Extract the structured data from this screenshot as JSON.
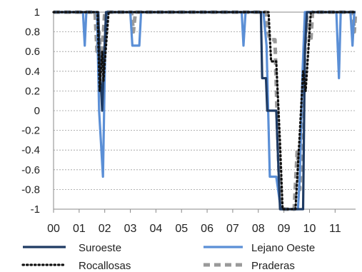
{
  "chart_data": {
    "type": "line",
    "title": "",
    "xlabel": "",
    "ylabel": "",
    "x_tick_labels": [
      "00",
      "01",
      "02",
      "03",
      "04",
      "05",
      "06",
      "07",
      "08",
      "09",
      "10",
      "11"
    ],
    "xlim": [
      0,
      11.8
    ],
    "ylim": [
      -1,
      1
    ],
    "y_ticks": [
      1,
      0.8,
      0.6,
      0.4,
      0.2,
      0,
      -0.2,
      -0.4,
      -0.6,
      -0.8,
      -1
    ],
    "grid": "horizontal-dashed",
    "legend_position": "bottom",
    "series": [
      {
        "name": "Suroeste",
        "color": "#1f3b63",
        "style": "solid",
        "points": [
          [
            0,
            1
          ],
          [
            1.75,
            1
          ],
          [
            1.8,
            0.5
          ],
          [
            1.9,
            0
          ],
          [
            1.97,
            0.5
          ],
          [
            2.05,
            1
          ],
          [
            2.2,
            1
          ],
          [
            8.1,
            1
          ],
          [
            8.15,
            0.33
          ],
          [
            8.3,
            0.33
          ],
          [
            8.35,
            0
          ],
          [
            8.7,
            0
          ],
          [
            8.85,
            -1
          ],
          [
            9.75,
            -1
          ],
          [
            9.82,
            0.6
          ],
          [
            9.9,
            1
          ],
          [
            11.8,
            1
          ]
        ]
      },
      {
        "name": "Lejano Oeste",
        "color": "#5b8fd6",
        "style": "solid",
        "points": [
          [
            0,
            1
          ],
          [
            1.15,
            1
          ],
          [
            1.22,
            0.66
          ],
          [
            1.28,
            1
          ],
          [
            1.7,
            1
          ],
          [
            1.78,
            0
          ],
          [
            1.93,
            -0.67
          ],
          [
            2.02,
            0.66
          ],
          [
            2.08,
            1
          ],
          [
            3.0,
            1
          ],
          [
            3.08,
            0.66
          ],
          [
            3.35,
            0.66
          ],
          [
            3.42,
            1
          ],
          [
            7.35,
            1
          ],
          [
            7.42,
            0.66
          ],
          [
            7.5,
            1
          ],
          [
            8.2,
            1
          ],
          [
            8.32,
            0.66
          ],
          [
            8.45,
            -0.67
          ],
          [
            8.7,
            -0.67
          ],
          [
            8.88,
            -1
          ],
          [
            9.55,
            -1
          ],
          [
            9.62,
            -0.67
          ],
          [
            9.72,
            0.33
          ],
          [
            9.82,
            1
          ],
          [
            11.05,
            1
          ],
          [
            11.15,
            0.33
          ],
          [
            11.22,
            1
          ],
          [
            11.6,
            1
          ],
          [
            11.68,
            0.66
          ],
          [
            11.75,
            1
          ],
          [
            11.8,
            1
          ]
        ]
      },
      {
        "name": "Rocallosas",
        "color": "#111111",
        "style": "dotted",
        "points": [
          [
            0,
            1
          ],
          [
            1.72,
            1
          ],
          [
            1.8,
            0.2
          ],
          [
            1.9,
            0.6
          ],
          [
            1.95,
            0.3
          ],
          [
            2.05,
            0.66
          ],
          [
            2.15,
            1
          ],
          [
            8.4,
            1
          ],
          [
            8.5,
            0.5
          ],
          [
            8.7,
            0.5
          ],
          [
            8.85,
            -0.33
          ],
          [
            8.95,
            -1
          ],
          [
            9.45,
            -1
          ],
          [
            9.6,
            -0.33
          ],
          [
            9.75,
            0.4
          ],
          [
            9.85,
            0.2
          ],
          [
            9.95,
            0.6
          ],
          [
            10.05,
            1
          ],
          [
            11.8,
            1
          ]
        ]
      },
      {
        "name": "Praderas",
        "color": "#9a9a9a",
        "style": "dashed",
        "points": [
          [
            0,
            1
          ],
          [
            1.62,
            1
          ],
          [
            1.7,
            0.6
          ],
          [
            1.78,
            0.8
          ],
          [
            1.85,
            0.5
          ],
          [
            1.95,
            0.8
          ],
          [
            2.0,
            1
          ],
          [
            3.05,
            1
          ],
          [
            3.12,
            0.8
          ],
          [
            3.2,
            1
          ],
          [
            8.3,
            1
          ],
          [
            8.38,
            0.8
          ],
          [
            8.45,
            0.72
          ],
          [
            8.65,
            0.72
          ],
          [
            8.75,
            -0.2
          ],
          [
            8.85,
            -0.9
          ],
          [
            9.0,
            -1
          ],
          [
            9.4,
            -1
          ],
          [
            9.52,
            -0.4
          ],
          [
            9.62,
            -0.8
          ],
          [
            9.72,
            -0.2
          ],
          [
            9.82,
            0.6
          ],
          [
            9.9,
            0.95
          ],
          [
            10.05,
            0.7
          ],
          [
            10.12,
            1
          ],
          [
            11.7,
            1
          ],
          [
            11.75,
            0.8
          ],
          [
            11.8,
            1
          ]
        ]
      }
    ]
  }
}
